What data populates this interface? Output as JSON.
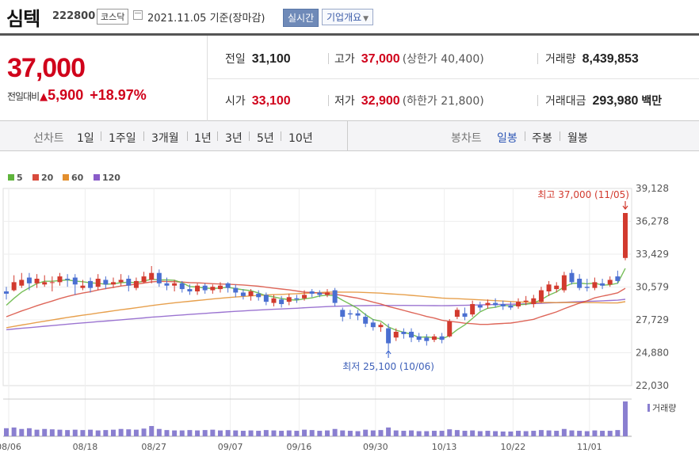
{
  "header": {
    "name": "심텍",
    "code": "222800",
    "market": "코스닥",
    "as_of": "2021.11.05  기준(장마감)",
    "realtime_label": "실시간",
    "corp_info_label": "기업개요"
  },
  "price": {
    "current": "37,000",
    "change_label": "전일대비",
    "change": "5,900",
    "change_pct": "+18.97%"
  },
  "summary": {
    "prev": {
      "label": "전일",
      "value": "31,100"
    },
    "high": {
      "label": "고가",
      "value": "37,000",
      "sub": "(상한가 40,400)"
    },
    "volume": {
      "label": "거래량",
      "value": "8,439,853"
    },
    "open": {
      "label": "시가",
      "value": "33,100"
    },
    "low": {
      "label": "저가",
      "value": "32,900",
      "sub": "(하한가 21,800)"
    },
    "amount": {
      "label": "거래대금",
      "value": "293,980",
      "unit": "백만"
    }
  },
  "tabs": {
    "line_label": "선차트",
    "line_items": [
      "1일",
      "1주일",
      "3개월",
      "1년",
      "3년",
      "5년",
      "10년"
    ],
    "candle_label": "봉차트",
    "candle_items": [
      "일봉",
      "주봉",
      "월봉"
    ],
    "candle_active": "일봉"
  },
  "chart_data": {
    "type": "candlestick",
    "legend": [
      {
        "name": "5",
        "color": "#5fb43c"
      },
      {
        "name": "20",
        "color": "#d84b3c"
      },
      {
        "name": "60",
        "color": "#e38f2e"
      },
      {
        "name": "120",
        "color": "#8a5cc9"
      }
    ],
    "y_ticks": [
      "39,128",
      "36,278",
      "33,429",
      "30,579",
      "27,729",
      "24,880",
      "22,030"
    ],
    "ylim": [
      22030,
      39128
    ],
    "x_ticks": [
      "08/06",
      "08/18",
      "08/27",
      "09/07",
      "09/16",
      "09/30",
      "10/13",
      "10/22",
      "11/01"
    ],
    "annotation_high": "최고 37,000 (11/05)",
    "annotation_low": "최저 25,100 (10/06)",
    "volume_label": "거래량",
    "up_color": "#d23a2e",
    "down_color": "#4a6fd1",
    "candles": [
      [
        30200,
        30000,
        30600,
        29500
      ],
      [
        30300,
        31000,
        31600,
        30200
      ],
      [
        30700,
        31200,
        31800,
        30500
      ],
      [
        31400,
        30900,
        31800,
        30300
      ],
      [
        30900,
        31300,
        31700,
        30500
      ],
      [
        30800,
        31000,
        31600,
        30600
      ],
      [
        31000,
        31000,
        31500,
        30200
      ],
      [
        31000,
        31500,
        31800,
        30700
      ],
      [
        31300,
        31200,
        31700,
        30600
      ],
      [
        31400,
        30800,
        31700,
        29900
      ],
      [
        30500,
        30700,
        31200,
        30300
      ],
      [
        31100,
        30500,
        31400,
        30100
      ],
      [
        30600,
        31300,
        31700,
        30300
      ],
      [
        31200,
        30800,
        31500,
        30400
      ],
      [
        30800,
        31000,
        31400,
        30500
      ],
      [
        31000,
        31200,
        31700,
        30700
      ],
      [
        31300,
        30700,
        31600,
        30200
      ],
      [
        30500,
        31100,
        31400,
        30300
      ],
      [
        31000,
        31500,
        31900,
        30900
      ],
      [
        31200,
        31800,
        32400,
        30900
      ],
      [
        31800,
        30900,
        32100,
        30600
      ],
      [
        30900,
        30700,
        31400,
        30300
      ],
      [
        30700,
        30900,
        31200,
        30200
      ],
      [
        30900,
        30400,
        31100,
        30100
      ],
      [
        30400,
        30200,
        30800,
        29900
      ],
      [
        30200,
        30700,
        30900,
        29900
      ],
      [
        30700,
        30300,
        30900,
        30000
      ],
      [
        30300,
        30600,
        30800,
        30000
      ],
      [
        30400,
        30700,
        31000,
        30100
      ],
      [
        30900,
        30500,
        31000,
        30100
      ],
      [
        30500,
        30100,
        30800,
        29700
      ],
      [
        30100,
        29800,
        30400,
        29500
      ],
      [
        29800,
        30200,
        30400,
        29400
      ],
      [
        30000,
        29700,
        30300,
        29400
      ],
      [
        29900,
        29300,
        30100,
        29000
      ],
      [
        29200,
        29600,
        29900,
        28900
      ],
      [
        29500,
        29100,
        29800,
        28800
      ],
      [
        29300,
        29700,
        30000,
        29000
      ],
      [
        29600,
        29500,
        29900,
        29200
      ],
      [
        29600,
        29900,
        30300,
        29400
      ],
      [
        30200,
        30000,
        30400,
        29700
      ],
      [
        30100,
        29900,
        30300,
        29700
      ],
      [
        29900,
        30100,
        30400,
        29700
      ],
      [
        30300,
        29200,
        30500,
        28900
      ],
      [
        28600,
        28000,
        28800,
        27600
      ],
      [
        28300,
        28200,
        28600,
        27800
      ],
      [
        28300,
        28100,
        28600,
        27700
      ],
      [
        28000,
        27400,
        28300,
        27100
      ],
      [
        27500,
        27100,
        27800,
        26800
      ],
      [
        27100,
        27300,
        27500,
        26700
      ],
      [
        27000,
        25700,
        27400,
        25100
      ],
      [
        26200,
        26700,
        27000,
        25900
      ],
      [
        26700,
        26500,
        27000,
        26100
      ],
      [
        26700,
        26200,
        27000,
        25800
      ],
      [
        26300,
        26000,
        26600,
        25800
      ],
      [
        26200,
        25900,
        26500,
        25500
      ],
      [
        26000,
        26300,
        26500,
        25800
      ],
      [
        26300,
        26000,
        26600,
        25700
      ],
      [
        26300,
        27600,
        27800,
        26200
      ],
      [
        28000,
        28600,
        28800,
        27800
      ],
      [
        28300,
        28000,
        28800,
        27700
      ],
      [
        28200,
        29100,
        29400,
        28000
      ],
      [
        29000,
        28800,
        29300,
        28500
      ],
      [
        29000,
        29200,
        29500,
        28700
      ],
      [
        29200,
        29000,
        29600,
        28800
      ],
      [
        29100,
        28900,
        29400,
        28600
      ],
      [
        29000,
        28800,
        29300,
        28600
      ],
      [
        28900,
        29300,
        29600,
        28700
      ],
      [
        29300,
        29400,
        29800,
        29000
      ],
      [
        29100,
        29600,
        29900,
        28800
      ],
      [
        29300,
        30300,
        30600,
        29200
      ],
      [
        30200,
        30800,
        31100,
        29800
      ],
      [
        30400,
        30700,
        31000,
        30100
      ],
      [
        30300,
        31600,
        31900,
        30100
      ],
      [
        31800,
        31000,
        32100,
        30800
      ],
      [
        31300,
        30500,
        31700,
        30300
      ],
      [
        30600,
        30500,
        31300,
        30200
      ],
      [
        30500,
        31000,
        31400,
        30300
      ],
      [
        30900,
        30700,
        31300,
        30400
      ],
      [
        30800,
        31200,
        31500,
        30600
      ],
      [
        31500,
        31100,
        32000,
        30900
      ],
      [
        33100,
        37000,
        37000,
        32900
      ]
    ],
    "volumes": [
      22,
      24,
      20,
      22,
      18,
      20,
      19,
      18,
      17,
      18,
      17,
      18,
      16,
      17,
      18,
      20,
      19,
      18,
      21,
      28,
      20,
      17,
      16,
      16,
      17,
      16,
      17,
      18,
      16,
      17,
      16,
      15,
      16,
      15,
      17,
      16,
      15,
      16,
      15,
      18,
      17,
      15,
      16,
      20,
      16,
      15,
      14,
      18,
      16,
      17,
      24,
      16,
      15,
      16,
      14,
      14,
      15,
      15,
      19,
      17,
      15,
      16,
      14,
      15,
      14,
      13,
      13,
      15,
      14,
      15,
      17,
      16,
      15,
      20,
      16,
      15,
      14,
      16,
      15,
      15,
      17,
      95
    ]
  }
}
